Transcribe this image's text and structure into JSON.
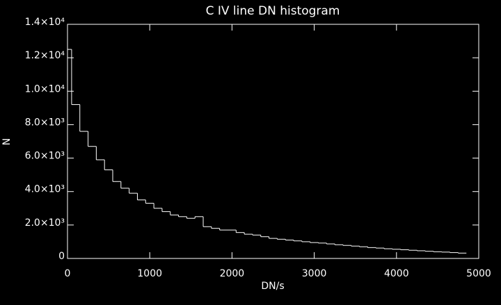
{
  "chart_data": {
    "type": "histogram",
    "title": "C IV line DN histogram",
    "x_label": "DN/s",
    "y_label": "N",
    "bins": [
      0,
      50,
      150,
      250,
      350,
      450,
      550,
      650,
      750,
      850,
      950,
      1050,
      1150,
      1250,
      1350,
      1450,
      1550,
      1650,
      1750,
      1850,
      1950,
      2050,
      2150,
      2250,
      2350,
      2450,
      2550,
      2650,
      2750,
      2850,
      2950,
      3050,
      3150,
      3250,
      3350,
      3450,
      3550,
      3650,
      3750,
      3850,
      3950,
      4050,
      4150,
      4250,
      4350,
      4450,
      4550,
      4650,
      4750,
      4850
    ],
    "values": [
      12500,
      9200,
      7600,
      6700,
      5900,
      5300,
      4600,
      4200,
      3900,
      3500,
      3300,
      3000,
      2800,
      2600,
      2500,
      2400,
      2500,
      1900,
      1800,
      1700,
      1700,
      1550,
      1450,
      1400,
      1300,
      1200,
      1150,
      1100,
      1050,
      1000,
      950,
      920,
      870,
      820,
      780,
      740,
      700,
      650,
      620,
      580,
      550,
      520,
      490,
      460,
      430,
      400,
      380,
      350,
      320
    ],
    "color": "#ffffff",
    "xlim": [
      0,
      5000
    ],
    "xticks": [
      0,
      1000,
      2000,
      3000,
      4000,
      5000
    ],
    "ylim": [
      0,
      14000
    ],
    "yticks": [
      0,
      {
        "value": 2000,
        "label": "2.0×10³"
      },
      {
        "value": 4000,
        "label": "4.0×10³"
      },
      {
        "value": 6000,
        "label": "6.0×10³"
      },
      {
        "value": 8000,
        "label": "8.0×10³"
      },
      {
        "value": 10000,
        "label": "1.0×10⁴"
      },
      {
        "value": 12000,
        "label": "1.2×10⁴"
      },
      {
        "value": 14000,
        "label": "1.4×10⁴"
      }
    ]
  }
}
